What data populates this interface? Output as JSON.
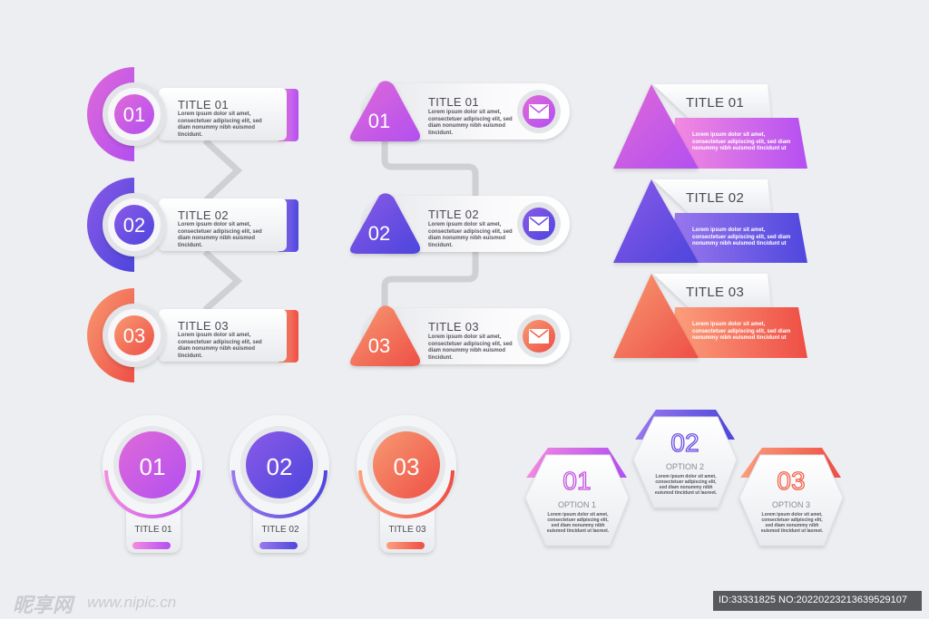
{
  "colors": {
    "pink": "#c553e4",
    "purple": "#6c4fe4",
    "coral": "#f2624e",
    "bg": "#eceef1"
  },
  "icons": [
    "mail-icon"
  ],
  "group1": {
    "items": [
      {
        "num": "01",
        "title": "TITLE 01",
        "text": "Lorem ipsum dolor sit amet, consectetuer adipiscing elit, sed diam nonummy nibh euismod tincidunt."
      },
      {
        "num": "02",
        "title": "TITLE 02",
        "text": "Lorem ipsum dolor sit amet, consectetuer adipiscing elit, sed diam nonummy nibh euismod tincidunt."
      },
      {
        "num": "03",
        "title": "TITLE 03",
        "text": "Lorem ipsum dolor sit amet, consectetuer adipiscing elit, sed diam nonummy nibh euismod tincidunt."
      }
    ]
  },
  "group2": {
    "items": [
      {
        "num": "01",
        "title": "TITLE 01",
        "text": "Lorem ipsum dolor sit amet, consectetuer adipiscing elit, sed diam nonummy nibh euismod tincidunt."
      },
      {
        "num": "02",
        "title": "TITLE 02",
        "text": "Lorem ipsum dolor sit amet, consectetuer adipiscing elit, sed diam nonummy nibh euismod tincidunt."
      },
      {
        "num": "03",
        "title": "TITLE 03",
        "text": "Lorem ipsum dolor sit amet, consectetuer adipiscing elit, sed diam nonummy nibh euismod tincidunt."
      }
    ]
  },
  "group3": {
    "items": [
      {
        "title": "TITLE 01",
        "text": "Lorem ipsum dolor sit amet, consectetuer adipiscing elit, sed diam nonummy nibh euismod tincidunt ut"
      },
      {
        "title": "TITLE 02",
        "text": "Lorem ipsum dolor sit amet, consectetuer adipiscing elit, sed diam nonummy nibh euismod tincidunt ut"
      },
      {
        "title": "TITLE 03",
        "text": "Lorem ipsum dolor sit amet, consectetuer adipiscing elit, sed diam nonummy nibh euismod tincidunt ut"
      }
    ]
  },
  "group4": {
    "items": [
      {
        "num": "01",
        "title": "TITLE 01"
      },
      {
        "num": "02",
        "title": "TITLE 02"
      },
      {
        "num": "03",
        "title": "TITLE 03"
      }
    ]
  },
  "group5": {
    "items": [
      {
        "num": "01",
        "option": "OPTION 1",
        "text": "Lorem ipsum dolor sit amet, consectetuer adipiscing elit, sed diam nonummy nibh euismod tincidunt ut laoreet."
      },
      {
        "num": "02",
        "option": "OPTION 2",
        "text": "Lorem ipsum dolor sit amet, consectetuer adipiscing elit, sed diam nonummy nibh euismod tincidunt ut laoreet."
      },
      {
        "num": "03",
        "option": "OPTION 3",
        "text": "Lorem ipsum dolor sit amet, consectetuer adipiscing elit, sed diam nonummy nibh euismod tincidunt ut laoreet."
      }
    ]
  },
  "watermark": {
    "logo": "昵享网",
    "site": "www.nipic.cn",
    "id": "ID:33331825 NO:20220223213639529107"
  }
}
